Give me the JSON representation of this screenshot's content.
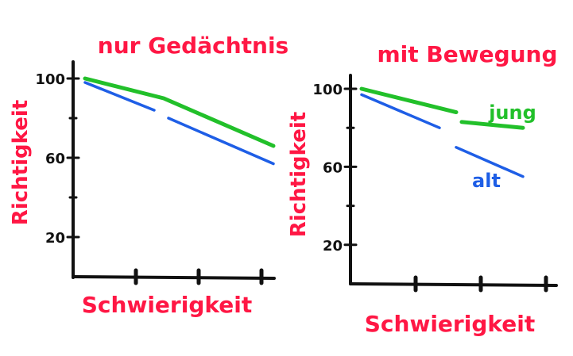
{
  "colors": {
    "title": "#ff1744",
    "axis": "#111111",
    "green": "#22c02a",
    "blue": "#1e5ee6",
    "paper": "#ffffff"
  },
  "chart_data": [
    {
      "type": "line",
      "title": "nur Gedächtnis",
      "xlabel": "Schwierigkeit",
      "ylabel": "Richtigkeit",
      "yticks": [
        20,
        60,
        100
      ],
      "ylim": [
        0,
        110
      ],
      "xlim": [
        0,
        4
      ],
      "series": [
        {
          "color": "green",
          "x": [
            0.25,
            1.9,
            4.2
          ],
          "values": [
            100,
            90,
            66
          ]
        },
        {
          "color": "blue",
          "segments": [
            {
              "x": [
                0.25,
                1.7
              ],
              "values": [
                98,
                84
              ]
            },
            {
              "x": [
                2.0,
                4.2
              ],
              "values": [
                80,
                57
              ]
            }
          ]
        }
      ]
    },
    {
      "type": "line",
      "title": "mit Bewegung",
      "xlabel": "Schwierigkeit",
      "ylabel": "Richtigkeit",
      "yticks": [
        20,
        60,
        100
      ],
      "ylim": [
        0,
        110
      ],
      "xlim": [
        0,
        4
      ],
      "series": [
        {
          "name": "jung",
          "color": "green",
          "segments": [
            {
              "x": [
                0.2,
                1.9
              ],
              "values": [
                100,
                88
              ]
            },
            {
              "x": [
                2.0,
                3.1
              ],
              "values": [
                83,
                80
              ]
            }
          ]
        },
        {
          "name": "alt",
          "color": "blue",
          "segments": [
            {
              "x": [
                0.2,
                1.6
              ],
              "values": [
                97,
                80
              ]
            },
            {
              "x": [
                1.9,
                3.1
              ],
              "values": [
                70,
                55
              ]
            }
          ]
        }
      ]
    }
  ]
}
